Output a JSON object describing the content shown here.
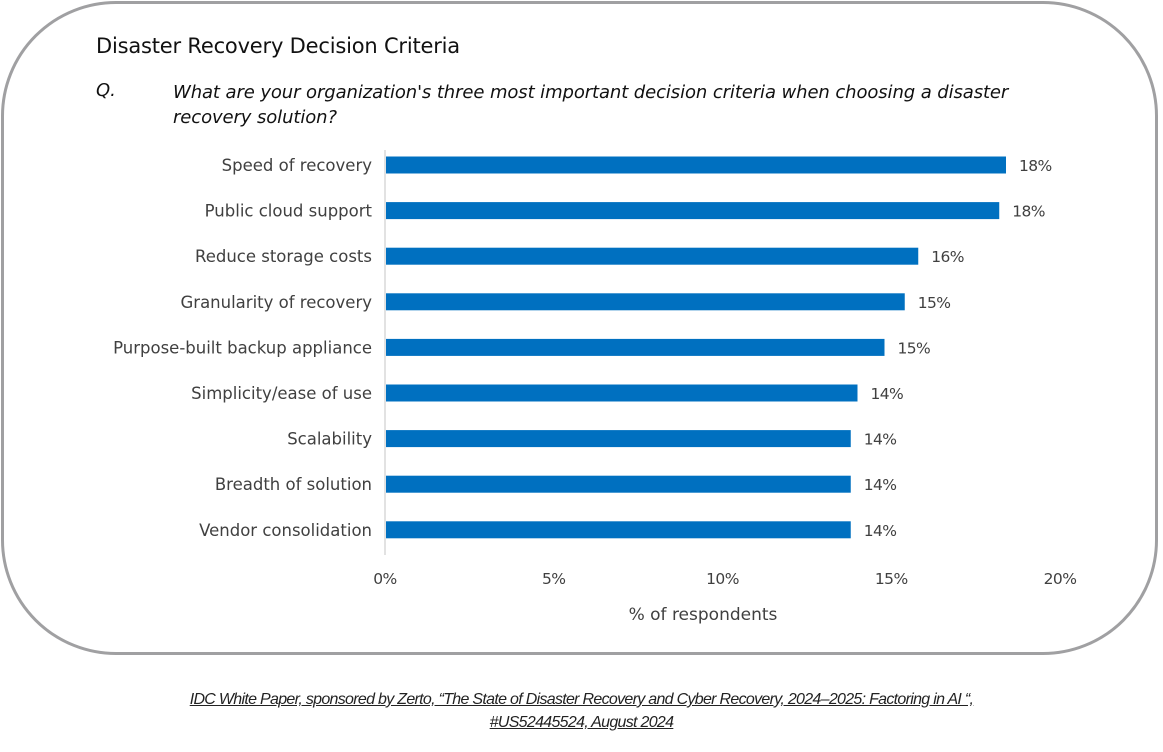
{
  "chart_data": {
    "type": "bar",
    "orientation": "horizontal",
    "title": "Disaster Recovery Decision Criteria",
    "question_label": "Q.",
    "question": "What are your organization's three most important decision criteria when choosing a disaster recovery solution?",
    "categories": [
      "Speed of recovery",
      "Public cloud support",
      "Reduce storage costs",
      "Granularity of recovery",
      "Purpose-built backup appliance",
      "Simplicity/ease of use",
      "Scalability",
      "Breadth of solution",
      "Vendor consolidation"
    ],
    "values": [
      18.4,
      18.2,
      15.8,
      15.4,
      14.8,
      14.0,
      13.8,
      13.8,
      13.8
    ],
    "data_labels": [
      "18%",
      "18%",
      "16%",
      "15%",
      "15%",
      "14%",
      "14%",
      "14%",
      "14%"
    ],
    "xlabel": "% of respondents",
    "ylabel": "",
    "xlim": [
      0,
      20
    ],
    "x_ticks": [
      0,
      5,
      10,
      15,
      20
    ],
    "x_tick_labels": [
      "0%",
      "5%",
      "10%",
      "15%",
      "20%"
    ],
    "grid": false,
    "legend": "none",
    "bar_color": "#0070c0"
  },
  "citation": {
    "line1": "IDC White Paper, sponsored by Zerto, “The State of Disaster Recovery and Cyber Recovery, 2024–2025: Factoring in AI “,",
    "line2": "#US52445524, August 2024"
  },
  "colors": {
    "frame_border": "#a0a0a2",
    "text": "#404040",
    "bar": "#0070c0",
    "axis": "#d9d9d9"
  }
}
